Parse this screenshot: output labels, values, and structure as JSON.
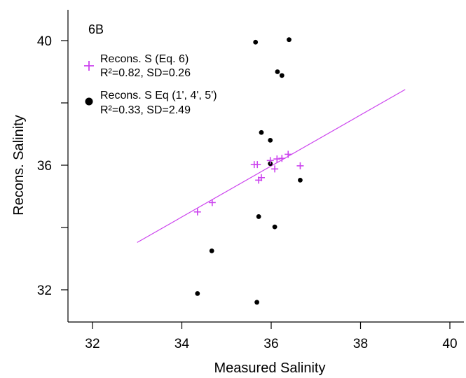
{
  "chart_data": {
    "type": "scatter",
    "panel_label": "6B",
    "xlabel": "Measured Salinity",
    "ylabel": "Recons. Salinity",
    "xlim": [
      31.5,
      40.2
    ],
    "ylim": [
      31.0,
      41.0
    ],
    "x_ticks": [
      32,
      34,
      36,
      38,
      40
    ],
    "y_ticks_labeled": [
      32,
      36,
      40
    ],
    "y_ticks_minor": [
      34,
      38
    ],
    "grid": false,
    "legend_position": "top-left",
    "colors": {
      "plus_series": "#cc44ee",
      "dot_series": "#000000",
      "fit_line": "#cc44ee"
    },
    "series": [
      {
        "name": "Recons. S (Eq. 6)",
        "stats": "R²=0.82, SD=0.26",
        "marker": "plus",
        "points": [
          [
            34.35,
            34.5
          ],
          [
            34.68,
            34.8
          ],
          [
            35.62,
            36.02
          ],
          [
            35.69,
            36.02
          ],
          [
            35.72,
            35.52
          ],
          [
            35.78,
            35.6
          ],
          [
            35.98,
            36.15
          ],
          [
            36.08,
            35.88
          ],
          [
            36.13,
            36.2
          ],
          [
            36.24,
            36.22
          ],
          [
            36.38,
            36.35
          ],
          [
            36.65,
            35.98
          ]
        ]
      },
      {
        "name": "Recons. S Eq (1', 4', 5')",
        "stats": "R²=0.33, SD=2.49",
        "marker": "dot",
        "points": [
          [
            34.35,
            31.88
          ],
          [
            34.67,
            33.25
          ],
          [
            35.65,
            39.95
          ],
          [
            35.68,
            31.6
          ],
          [
            35.72,
            34.35
          ],
          [
            35.78,
            37.05
          ],
          [
            35.98,
            36.8
          ],
          [
            35.98,
            36.05
          ],
          [
            36.08,
            34.02
          ],
          [
            36.14,
            39.0
          ],
          [
            36.24,
            38.88
          ],
          [
            36.4,
            40.03
          ],
          [
            36.65,
            35.52
          ]
        ]
      }
    ],
    "fit_line": {
      "x": [
        33.0,
        39.0
      ],
      "y": [
        33.52,
        38.43
      ]
    }
  }
}
